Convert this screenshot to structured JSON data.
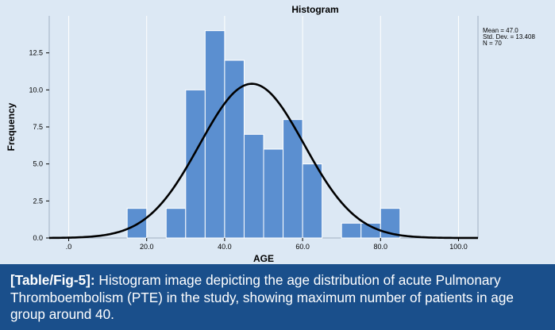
{
  "chart_data": {
    "type": "bar",
    "title": "Histogram",
    "xlabel": "AGE",
    "ylabel": "Frequency",
    "xlim": [
      -5,
      105
    ],
    "ylim": [
      0,
      15
    ],
    "x_ticks": [
      0,
      20,
      40,
      60,
      80,
      100
    ],
    "x_tick_labels": [
      ".0",
      "20.0",
      "40.0",
      "60.0",
      "80.0",
      "100.0"
    ],
    "y_ticks": [
      0,
      2.5,
      5,
      7.5,
      10,
      12.5
    ],
    "y_tick_labels": [
      "0.0",
      "2.5",
      "5.0",
      "7.5",
      "10.0",
      "12.5"
    ],
    "grid": "vertical",
    "bin_width": 5,
    "bins": [
      {
        "start": 15,
        "end": 20,
        "count": 2
      },
      {
        "start": 20,
        "end": 25,
        "count": 0
      },
      {
        "start": 25,
        "end": 30,
        "count": 2
      },
      {
        "start": 30,
        "end": 35,
        "count": 10
      },
      {
        "start": 35,
        "end": 40,
        "count": 14
      },
      {
        "start": 40,
        "end": 45,
        "count": 12
      },
      {
        "start": 45,
        "end": 50,
        "count": 7
      },
      {
        "start": 50,
        "end": 55,
        "count": 6
      },
      {
        "start": 55,
        "end": 60,
        "count": 8
      },
      {
        "start": 60,
        "end": 65,
        "count": 5
      },
      {
        "start": 65,
        "end": 70,
        "count": 0
      },
      {
        "start": 70,
        "end": 75,
        "count": 1
      },
      {
        "start": 75,
        "end": 80,
        "count": 1
      },
      {
        "start": 80,
        "end": 85,
        "count": 2
      }
    ],
    "normal_curve": {
      "mean": 47.0,
      "sd": 13.408,
      "n": 70
    },
    "stats_lines": [
      "Mean = 47.0",
      "Std. Dev. = 13.408",
      "N = 70"
    ]
  },
  "colors": {
    "background": "#dce8f4",
    "bar_fill": "#5b8fd0",
    "bar_stroke": "#ffffff",
    "curve": "#000000",
    "caption_bg": "#1a4f8b",
    "caption_text": "#ffffff"
  },
  "caption": {
    "ref": "[Table/Fig-5]:",
    "text": " Histogram image depicting the age distribution of acute Pulmonary Thromboembolism (PTE) in the study, showing maximum number of patients in age group around 40."
  }
}
